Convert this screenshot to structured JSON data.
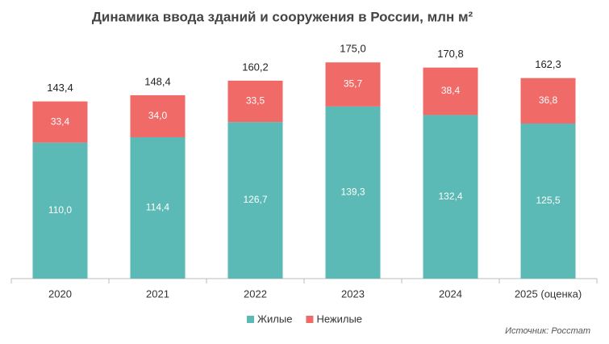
{
  "chart_data": {
    "type": "stacked-bar",
    "title": "Динамика ввода зданий и сооружения в России, млн м²",
    "categories": [
      "2020",
      "2021",
      "2022",
      "2023",
      "2024",
      "2025 (оценка)"
    ],
    "series": [
      {
        "name": "Жилые",
        "color": "#5bbab5",
        "values": [
          110.0,
          114.4,
          126.7,
          139.3,
          132.4,
          125.5
        ],
        "value_labels": [
          "110,0",
          "114,4",
          "126,7",
          "139,3",
          "132,4",
          "125,5"
        ]
      },
      {
        "name": "Нежилые",
        "color": "#f06a68",
        "values": [
          33.4,
          34.0,
          33.5,
          35.7,
          38.4,
          36.8
        ],
        "value_labels": [
          "33,4",
          "34,0",
          "33,5",
          "35,7",
          "38,4",
          "36,8"
        ]
      }
    ],
    "totals": [
      143.4,
      148.4,
      160.2,
      175.0,
      170.8,
      162.3
    ],
    "total_labels": [
      "143,4",
      "148,4",
      "160,2",
      "175,0",
      "170,8",
      "162,3"
    ],
    "source": "Источник: Росстат"
  }
}
